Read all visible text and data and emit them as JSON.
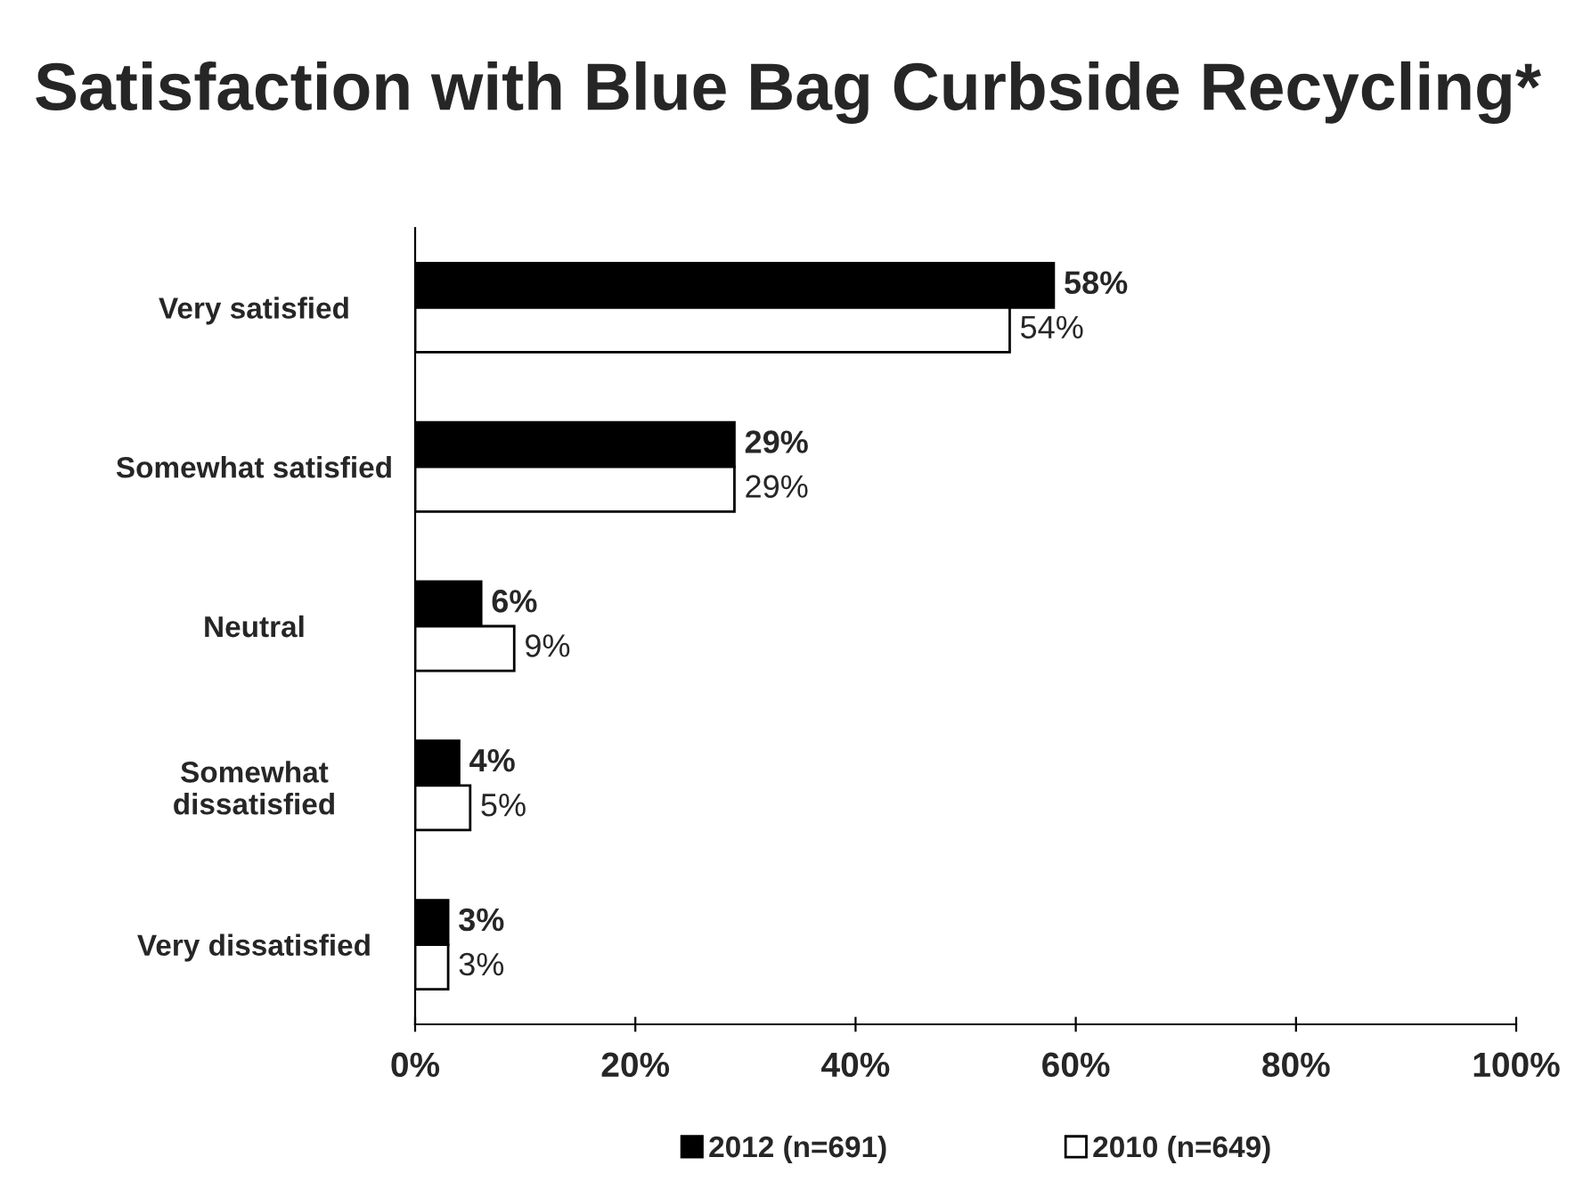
{
  "chart_data": {
    "type": "bar",
    "orientation": "horizontal",
    "title": "Satisfaction with Blue Bag Curbside Recycling*",
    "categories": [
      "Very satisfied",
      "Somewhat satisfied",
      "Neutral",
      "Somewhat\ndissatisfied",
      "Very dissatisfied"
    ],
    "series": [
      {
        "name": "2012 (n=691)",
        "color": "#000000",
        "values": [
          58,
          29,
          6,
          4,
          3
        ],
        "value_labels": [
          "58%",
          "29%",
          "6%",
          "4%",
          "3%"
        ]
      },
      {
        "name": "2010 (n=649)",
        "color": "#ffffff",
        "values": [
          54,
          29,
          9,
          5,
          3
        ],
        "value_labels": [
          "54%",
          "29%",
          "9%",
          "5%",
          "3%"
        ]
      }
    ],
    "xlim": [
      0,
      100
    ],
    "xticks": [
      {
        "value": 0,
        "label": "0%"
      },
      {
        "value": 20,
        "label": "20%"
      },
      {
        "value": 40,
        "label": "40%"
      },
      {
        "value": 60,
        "label": "60%"
      },
      {
        "value": 80,
        "label": "80%"
      },
      {
        "value": 100,
        "label": "100%"
      }
    ],
    "grid": false,
    "legend": "bottom"
  }
}
